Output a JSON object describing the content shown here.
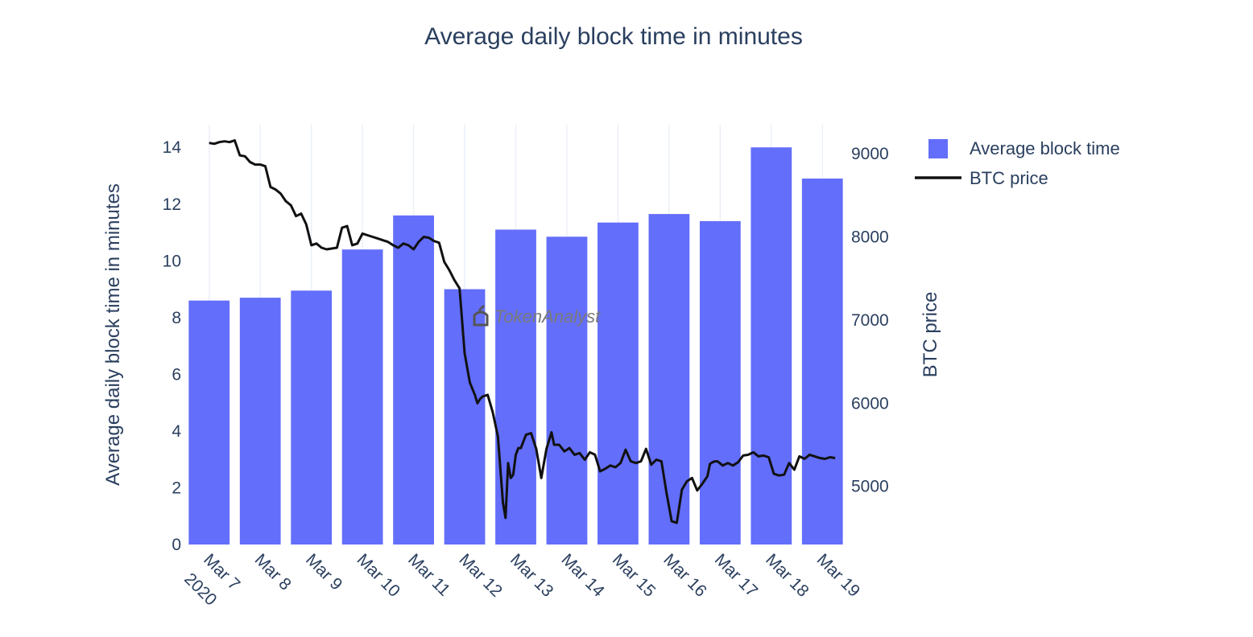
{
  "chart_data": {
    "type": "bar+line",
    "title": "Average daily block time in minutes",
    "categories": [
      "Mar 7",
      "Mar 8",
      "Mar 9",
      "Mar 10",
      "Mar 11",
      "Mar 12",
      "Mar 13",
      "Mar 14",
      "Mar 15",
      "Mar 16",
      "Mar 17",
      "Mar 18",
      "Mar 19"
    ],
    "year_label": "2020",
    "series": [
      {
        "name": "Average block time",
        "type": "bar",
        "axis": "left",
        "color": "#636efa",
        "values": [
          8.6,
          8.7,
          8.95,
          10.4,
          11.6,
          9.0,
          11.1,
          10.85,
          11.35,
          11.65,
          11.4,
          14.0,
          12.9
        ]
      },
      {
        "name": "BTC price",
        "type": "line",
        "axis": "right",
        "color": "#111111",
        "x": [
          0.0,
          0.1,
          0.2,
          0.3,
          0.4,
          0.5,
          0.6,
          0.7,
          0.8,
          0.9,
          1.0,
          1.1,
          1.2,
          1.3,
          1.4,
          1.5,
          1.6,
          1.7,
          1.8,
          1.9,
          2.0,
          2.1,
          2.2,
          2.3,
          2.4,
          2.5,
          2.6,
          2.7,
          2.8,
          2.9,
          3.0,
          3.1,
          3.2,
          3.3,
          3.4,
          3.5,
          3.6,
          3.7,
          3.8,
          3.9,
          4.0,
          4.1,
          4.2,
          4.3,
          4.4,
          4.5,
          4.6,
          4.7,
          4.8,
          4.9,
          5.0,
          5.1,
          5.2,
          5.25,
          5.3,
          5.35,
          5.45,
          5.55,
          5.65,
          5.75,
          5.8,
          5.85,
          5.9,
          5.95,
          6.0,
          6.05,
          6.1,
          6.2,
          6.3,
          6.4,
          6.5,
          6.6,
          6.7,
          6.75,
          6.85,
          6.95,
          7.05,
          7.15,
          7.25,
          7.35,
          7.45,
          7.55,
          7.65,
          7.75,
          7.85,
          7.95,
          8.05,
          8.15,
          8.25,
          8.35,
          8.45,
          8.55,
          8.65,
          8.75,
          8.85,
          8.95,
          9.05,
          9.15,
          9.25,
          9.35,
          9.45,
          9.55,
          9.65,
          9.75,
          9.8,
          9.85,
          9.9,
          9.95,
          10.05,
          10.15,
          10.25,
          10.35,
          10.45,
          10.55,
          10.65,
          10.75,
          10.85,
          10.95,
          11.05,
          11.15,
          11.25,
          11.35,
          11.45,
          11.55,
          11.65,
          11.75,
          11.85,
          11.95,
          12.05,
          12.15,
          12.25
        ],
        "values": [
          9130,
          9120,
          9140,
          9150,
          9140,
          9160,
          8980,
          8970,
          8900,
          8870,
          8870,
          8850,
          8600,
          8570,
          8520,
          8430,
          8380,
          8250,
          8280,
          8150,
          7900,
          7920,
          7870,
          7850,
          7860,
          7870,
          8110,
          8130,
          7900,
          7920,
          8040,
          8020,
          8000,
          7980,
          7960,
          7940,
          7900,
          7870,
          7920,
          7900,
          7850,
          7940,
          8000,
          7990,
          7950,
          7930,
          7700,
          7600,
          7480,
          7380,
          6600,
          6250,
          6100,
          6000,
          6050,
          6080,
          6100,
          5890,
          5600,
          4800,
          4620,
          5280,
          5100,
          5140,
          5380,
          5460,
          5460,
          5620,
          5640,
          5450,
          5100,
          5450,
          5650,
          5500,
          5500,
          5420,
          5460,
          5380,
          5400,
          5320,
          5410,
          5380,
          5180,
          5210,
          5250,
          5230,
          5280,
          5440,
          5300,
          5280,
          5300,
          5450,
          5260,
          5320,
          5300,
          4920,
          4580,
          4560,
          4960,
          5060,
          5100,
          4950,
          5030,
          5120,
          5270,
          5290,
          5300,
          5300,
          5250,
          5280,
          5250,
          5290,
          5370,
          5380,
          5410,
          5360,
          5370,
          5350,
          5150,
          5130,
          5140,
          5280,
          5200,
          5360,
          5330,
          5380,
          5360,
          5340,
          5330,
          5350,
          5340
        ]
      }
    ],
    "y_left": {
      "title": "Average daily block time in minutes",
      "range": [
        0,
        14.8
      ],
      "ticks": [
        0,
        2,
        4,
        6,
        8,
        10,
        12,
        14
      ]
    },
    "y_right": {
      "title": "BTC price",
      "range": [
        4300,
        9350
      ],
      "ticks": [
        5000,
        6000,
        7000,
        8000,
        9000
      ]
    },
    "legend": {
      "placement": "top-right",
      "items": [
        "Average block time",
        "BTC price"
      ]
    },
    "watermark": "TokenAnalyst",
    "grid": {
      "vertical": true,
      "horizontal": false
    }
  }
}
